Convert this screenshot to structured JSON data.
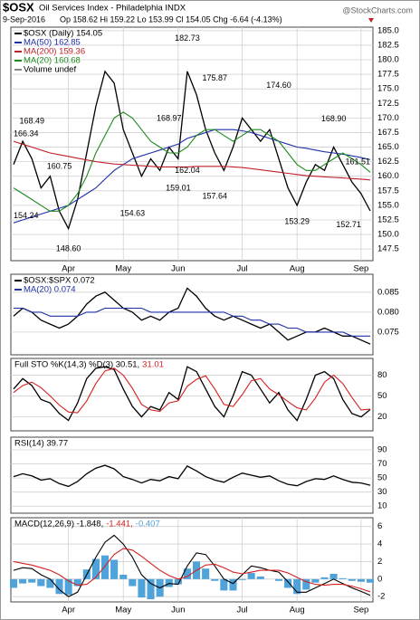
{
  "chart_data": [
    {
      "type": "line",
      "symbol": "$OSX",
      "title": "Oil Services Index - Philadelphia INDX",
      "date": "9-Sep-2016",
      "quote": "Op 158.62 Hi 159.22 Lo 153.99 Cl 154.05 Chg -6.64 (-4.13%)",
      "watermark": "@StockCharts.com",
      "legend_note": "Volume undef",
      "categories": [
        null,
        null,
        null,
        null,
        null,
        null,
        "Apr",
        null,
        null,
        null,
        null,
        null,
        "May",
        null,
        null,
        null,
        null,
        null,
        "Jun",
        null,
        null,
        null,
        null,
        null,
        null,
        "Jul",
        null,
        null,
        null,
        null,
        null,
        "Aug",
        null,
        null,
        null,
        null,
        null,
        null,
        "Sep",
        null
      ],
      "ylim": [
        145.5,
        185.6
      ],
      "yticks": [
        147.5,
        {
          "value": 150,
          "label": "150.0"
        },
        152.5,
        {
          "value": 155,
          "label": "155.0"
        },
        157.5,
        {
          "value": 160,
          "label": "160.0"
        },
        162.5,
        {
          "value": 165,
          "label": "165.0"
        },
        167.5,
        {
          "value": 170,
          "label": "170.0"
        },
        172.5,
        {
          "value": 175,
          "label": "175.0"
        },
        177.5,
        {
          "value": 180,
          "label": "180.0"
        },
        182.5,
        {
          "value": 185,
          "label": "185.0"
        }
      ],
      "grid": true,
      "series": [
        {
          "name": "$OSX (Daily) 154.05",
          "color": "#000000",
          "values": [
            162,
            166,
            163,
            158,
            160,
            154,
            151,
            156,
            164,
            172,
            178,
            176,
            168,
            164,
            160,
            163,
            161,
            165,
            163,
            178,
            174,
            168,
            164,
            161,
            165,
            170,
            168,
            166,
            168,
            163,
            158,
            155,
            159,
            162,
            161,
            165,
            162,
            159,
            157,
            154.05
          ]
        },
        {
          "name": "MA(50) 162.85",
          "color": "#1f2fa8",
          "values": [
            152,
            152.5,
            153,
            153.5,
            154,
            154.5,
            155,
            156,
            157,
            158,
            159.5,
            161,
            162,
            163,
            163.5,
            164,
            164.5,
            165,
            165.5,
            166.5,
            167,
            167.5,
            168,
            168,
            168,
            167.8,
            167.5,
            167,
            166.5,
            166,
            165.5,
            165,
            164.8,
            164.5,
            164.2,
            164,
            163.8,
            163.5,
            163.2,
            162.85
          ]
        },
        {
          "name": "MA(200) 159.36",
          "color": "#c0202a",
          "values": [
            166,
            165.5,
            165,
            164.5,
            164,
            163.7,
            163.4,
            163.1,
            162.8,
            162.5,
            162.3,
            162.1,
            162,
            161.9,
            161.8,
            161.7,
            161.6,
            161.6,
            161.6,
            161.6,
            161.7,
            161.7,
            161.7,
            161.7,
            161.6,
            161.5,
            161.3,
            161.1,
            160.9,
            160.7,
            160.5,
            160.3,
            160.1,
            160,
            159.9,
            159.8,
            159.7,
            159.6,
            159.5,
            159.36
          ]
        },
        {
          "name": "MA(20) 160.68",
          "color": "#1e8a1e",
          "values": [
            158,
            157,
            156,
            155,
            154,
            154,
            155,
            157,
            160,
            164,
            167,
            170,
            171,
            170,
            168,
            166,
            165,
            164,
            164,
            165,
            167,
            168,
            168,
            167,
            166,
            167,
            168,
            168,
            167,
            166,
            164,
            162,
            161,
            161,
            162,
            163,
            164,
            163,
            162,
            160.68
          ]
        }
      ],
      "annotations": [
        {
          "x": 0,
          "value": 166.34,
          "label": "166.34"
        },
        {
          "x": 2,
          "value": 168.49,
          "label": "168.49"
        },
        {
          "x": 5,
          "value": 160.75,
          "label": "160.75"
        },
        {
          "x": 0,
          "value": 154.24,
          "label": "154.24"
        },
        {
          "x": 6,
          "value": 148.6,
          "label": "148.60"
        },
        {
          "x": 19,
          "value": 182.73,
          "label": "182.73"
        },
        {
          "x": 17,
          "value": 168.97,
          "label": "168.97"
        },
        {
          "x": 22,
          "value": 175.87,
          "label": "175.87"
        },
        {
          "x": 29,
          "value": 174.6,
          "label": "174.60"
        },
        {
          "x": 35,
          "value": 168.9,
          "label": "168.90"
        },
        {
          "x": 39,
          "value": 161.51,
          "label": "161.51"
        },
        {
          "x": 18,
          "value": 159.01,
          "label": "159.01"
        },
        {
          "x": 13,
          "value": 154.63,
          "label": "154.63"
        },
        {
          "x": 19,
          "value": 162.04,
          "label": "162.04"
        },
        {
          "x": 22,
          "value": 157.64,
          "label": "157.64"
        },
        {
          "x": 31,
          "value": 153.29,
          "label": "153.29"
        },
        {
          "x": 38,
          "value": 152.71,
          "label": "152.71"
        }
      ]
    },
    {
      "type": "line",
      "ylim": [
        0.0693,
        0.0895
      ],
      "yticks": [
        0.075,
        {
          "value": 0.08,
          "label": "0.080"
        },
        0.085
      ],
      "grid": true,
      "series": [
        {
          "name": "$OSX:$SPX 0.072",
          "color": "#000000",
          "values": [
            0.079,
            0.081,
            0.08,
            0.078,
            0.077,
            0.076,
            0.077,
            0.079,
            0.082,
            0.084,
            0.085,
            0.083,
            0.081,
            0.08,
            0.078,
            0.079,
            0.078,
            0.08,
            0.081,
            0.086,
            0.084,
            0.081,
            0.079,
            0.078,
            0.079,
            0.078,
            0.077,
            0.076,
            0.077,
            0.075,
            0.073,
            0.074,
            0.075,
            0.075,
            0.076,
            0.075,
            0.074,
            0.074,
            0.073,
            0.072
          ]
        },
        {
          "name": "MA(20) 0.074",
          "color": "#1f2fa8",
          "values": [
            0.081,
            0.081,
            0.08,
            0.08,
            0.079,
            0.079,
            0.079,
            0.079,
            0.08,
            0.08,
            0.081,
            0.081,
            0.081,
            0.081,
            0.081,
            0.08,
            0.08,
            0.08,
            0.08,
            0.08,
            0.08,
            0.08,
            0.08,
            0.08,
            0.079,
            0.079,
            0.078,
            0.078,
            0.077,
            0.077,
            0.076,
            0.076,
            0.075,
            0.075,
            0.075,
            0.075,
            0.075,
            0.074,
            0.074,
            0.074
          ]
        }
      ]
    },
    {
      "type": "line",
      "ylim": [
        0,
        104
      ],
      "yticks": [
        20,
        50,
        80
      ],
      "grid": true,
      "series": [
        {
          "name": "Full STO %K(14,3) %D(3) 30.51,",
          "color": "#000000",
          "values": [
            60,
            75,
            65,
            45,
            40,
            25,
            15,
            40,
            75,
            90,
            92,
            88,
            60,
            35,
            20,
            35,
            30,
            55,
            45,
            92,
            85,
            60,
            35,
            20,
            50,
            85,
            80,
            60,
            40,
            55,
            30,
            15,
            45,
            80,
            85,
            75,
            45,
            25,
            20,
            30.51
          ]
        },
        {
          "name": "31.01",
          "color": "#d42020",
          "values": [
            55,
            65,
            70,
            62,
            50,
            37,
            27,
            26,
            43,
            68,
            86,
            90,
            80,
            61,
            38,
            30,
            28,
            40,
            43,
            64,
            74,
            79,
            60,
            38,
            35,
            52,
            72,
            75,
            60,
            52,
            42,
            33,
            30,
            47,
            70,
            80,
            68,
            48,
            30,
            31.01
          ]
        }
      ]
    },
    {
      "type": "line",
      "ylim": [
        0,
        108
      ],
      "yticks": [
        10,
        30,
        50,
        70,
        90
      ],
      "grid": true,
      "series": [
        {
          "name": "RSI(14) 39.77",
          "color": "#000000",
          "values": [
            52,
            56,
            53,
            47,
            49,
            42,
            38,
            45,
            56,
            64,
            68,
            63,
            52,
            48,
            43,
            48,
            46,
            52,
            49,
            67,
            60,
            52,
            47,
            44,
            51,
            57,
            54,
            51,
            53,
            46,
            41,
            39,
            45,
            49,
            48,
            53,
            48,
            44,
            43,
            39.77
          ]
        }
      ]
    },
    {
      "type": "line",
      "ylim": [
        -2.6,
        7
      ],
      "yticks": [
        -2,
        0,
        2,
        4,
        6
      ],
      "grid": true,
      "categories": [
        null,
        null,
        null,
        null,
        null,
        null,
        "Apr",
        null,
        null,
        null,
        null,
        null,
        "May",
        null,
        null,
        null,
        null,
        null,
        "Jun",
        null,
        null,
        null,
        null,
        null,
        null,
        "Jul",
        null,
        null,
        null,
        null,
        null,
        "Aug",
        null,
        null,
        null,
        null,
        null,
        null,
        "Sep",
        null
      ],
      "series": [
        {
          "name": "-0.407",
          "type": "bar",
          "color": "#4fa3d9",
          "values": [
            -1,
            -0.5,
            -0.4,
            -0.8,
            -1,
            -1.7,
            -1.8,
            -0.8,
            1.1,
            2.3,
            2.7,
            2.2,
            0.5,
            -0.8,
            -2.1,
            -2.3,
            -2,
            -0.9,
            -0.6,
            1.2,
            2,
            1.2,
            -0.2,
            -1.3,
            -1.3,
            -0.1,
            0.7,
            0.3,
            0,
            -0.2,
            -1,
            -1.7,
            -1.2,
            -0.4,
            0.2,
            0.6,
            0.1,
            -0.2,
            -0.3,
            -0.407
          ]
        },
        {
          "name": "MACD(12,26,9) -1.848,",
          "color": "#000000",
          "values": [
            1,
            1.3,
            1.2,
            0.5,
            0,
            -1.2,
            -2,
            -1.5,
            0.5,
            2.5,
            4.2,
            5,
            4,
            2.5,
            0.5,
            -0.5,
            -1,
            -0.5,
            -0.6,
            1.5,
            3,
            2.8,
            1.5,
            0,
            -0.5,
            0.5,
            1.5,
            1.3,
            1,
            0.8,
            -0.3,
            -1.5,
            -1.5,
            -1,
            -0.5,
            0,
            -0.5,
            -1,
            -1.4,
            -1.848
          ]
        },
        {
          "name": "-1.441,",
          "color": "#d42020",
          "values": [
            2,
            1.8,
            1.6,
            1.3,
            1,
            0.5,
            -0.2,
            -0.7,
            -0.6,
            0.2,
            1.5,
            2.8,
            3.5,
            3.3,
            2.6,
            1.8,
            1,
            0.4,
            0,
            0.3,
            1,
            1.6,
            1.7,
            1.3,
            0.8,
            0.6,
            0.8,
            1,
            1,
            1,
            0.7,
            0.2,
            -0.3,
            -0.6,
            -0.7,
            -0.6,
            -0.6,
            -0.8,
            -1.1,
            -1.441
          ]
        }
      ]
    }
  ]
}
